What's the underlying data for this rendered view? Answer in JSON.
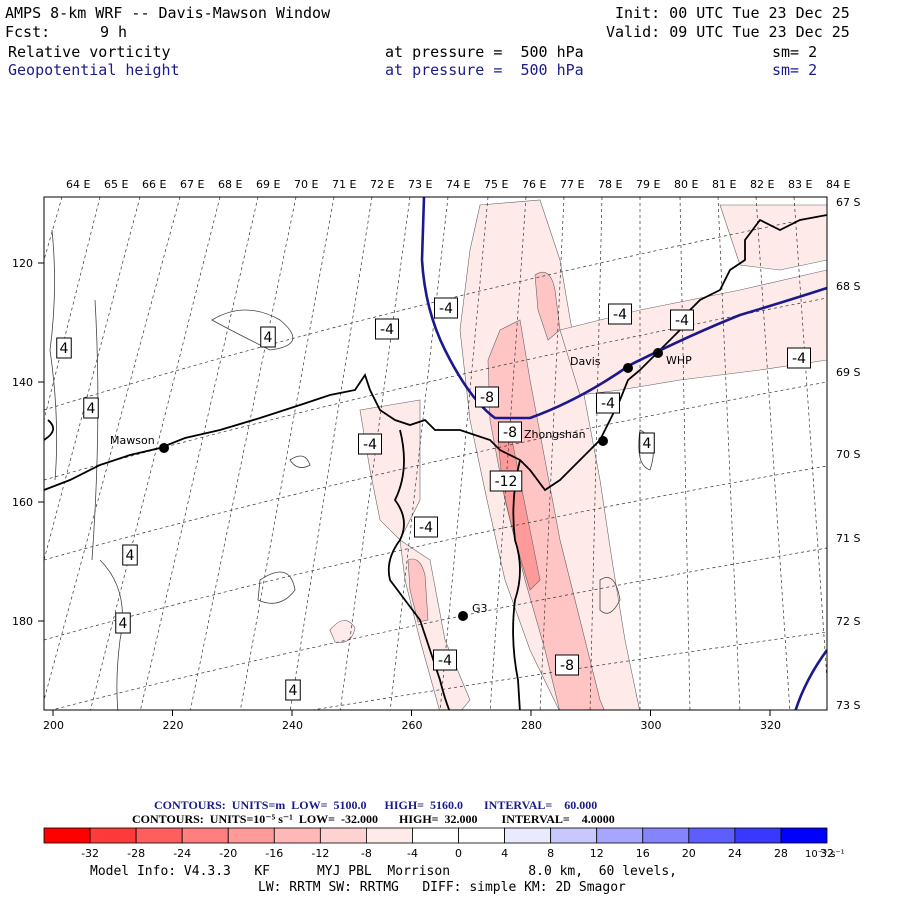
{
  "header": {
    "title": "AMPS 8-km WRF -- Davis-Mawson Window",
    "init": "Init: 00 UTC Tue 23 Dec 25",
    "fcst_label": "Fcst:",
    "fcst_value": "9 h",
    "valid": "Valid: 09 UTC Tue 23 Dec 25",
    "field1": {
      "name": "Relative vorticity",
      "level": "at pressure =  500 hPa",
      "sm": "sm= 2"
    },
    "field2": {
      "name": "Geopotential height",
      "level": "at pressure =  500 hPa",
      "sm": "sm= 2"
    }
  },
  "map": {
    "lon_labels": [
      "64 E",
      "65 E",
      "66 E",
      "67 E",
      "68 E",
      "69 E",
      "70 E",
      "71 E",
      "72 E",
      "73 E",
      "74 E",
      "75 E",
      "76 E",
      "77 E",
      "78 E",
      "79 E",
      "80 E",
      "81 E",
      "82 E",
      "83 E",
      "84 E"
    ],
    "lat_labels": [
      "67 S",
      "68 S",
      "69 S",
      "70 S",
      "71 S",
      "72 S",
      "73 S"
    ],
    "x_ticks": [
      "200",
      "220",
      "240",
      "260",
      "280",
      "300",
      "320"
    ],
    "y_ticks": [
      "120",
      "140",
      "160",
      "180"
    ],
    "stations": [
      {
        "name": "Mawson"
      },
      {
        "name": "Davis"
      },
      {
        "name": "WHP"
      },
      {
        "name": "Zhongshan"
      },
      {
        "name": "G3"
      }
    ],
    "contour_labels": [
      "4",
      "4",
      "4",
      "4",
      "4",
      "4",
      "4",
      "-4",
      "-4",
      "-4",
      "-4",
      "-4",
      "-4",
      "-4",
      "-4",
      "-4",
      "-8",
      "-8",
      "-8",
      "-12"
    ]
  },
  "contour_info": {
    "line1": "CONTOURS:  UNITS=m  LOW=  5100.0      HIGH=  5160.0       INTERVAL=    60.000",
    "line2": "CONTOURS:  UNITS=10⁻⁵ s⁻¹  LOW=  -32.000       HIGH=  32.000        INTERVAL=    4.0000"
  },
  "colorbar": {
    "colors": [
      "#ff0000",
      "#ff3a3a",
      "#ff5e5e",
      "#ff7e7e",
      "#ff9a9a",
      "#ffb8b8",
      "#ffd2d2",
      "#ffeaea",
      "#ffffff",
      "#ffffff",
      "#eaeaff",
      "#c8c8ff",
      "#a6a6ff",
      "#8484ff",
      "#5e5eff",
      "#3838ff",
      "#0000ff"
    ],
    "labels": [
      "-32",
      "-28",
      "-24",
      "-20",
      "-16",
      "-12",
      "-8",
      "-4",
      "0",
      "4",
      "8",
      "12",
      "16",
      "20",
      "24",
      "28",
      "32"
    ],
    "unit": "10⁻⁵ s⁻¹"
  },
  "footer": {
    "line1": "Model Info: V4.3.3   KF      MYJ PBL  Morrison          8.0 km,  60 levels,",
    "line2": "LW: RRTM SW: RRTMG   DIFF: simple KM: 2D Smagor"
  }
}
